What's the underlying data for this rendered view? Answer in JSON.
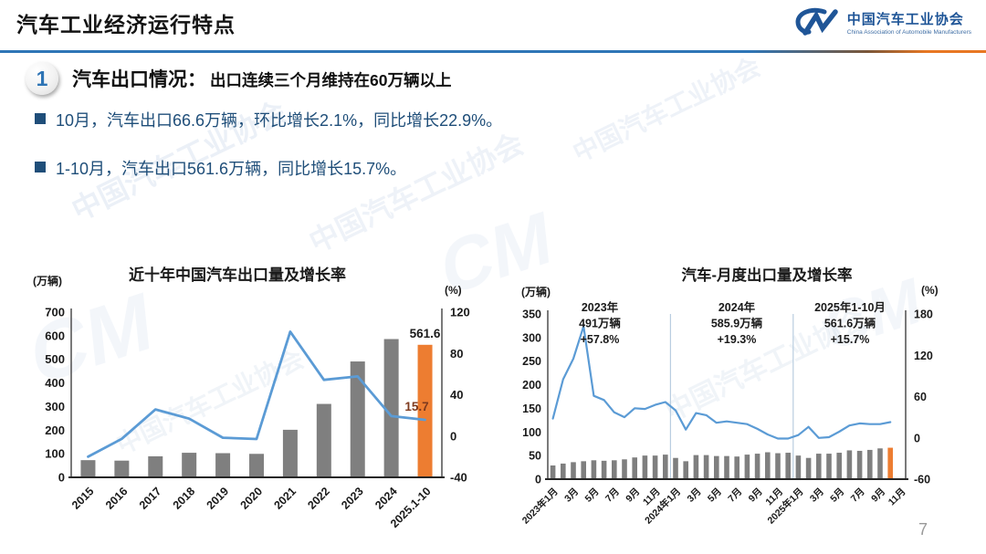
{
  "header": {
    "title": "汽车工业经济运行特点",
    "logo": {
      "mark": "CM",
      "name_cn": "中国汽车工业协会",
      "name_en": "China Association of Automobile Manufacturers"
    }
  },
  "section": {
    "number": "1",
    "heading": "汽车出口情况：",
    "subheading": "出口连续三个月维持在60万辆以上",
    "bullets": [
      "10月，汽车出口66.6万辆，环比增长2.1%，同比增长22.9%。",
      "1-10月，汽车出口561.6万辆，同比增长15.7%。"
    ]
  },
  "watermark": "中国汽车工业协会",
  "page_number": "7",
  "colors": {
    "bar_gray": "#7F7F7F",
    "bar_orange": "#ED7D31",
    "line_blue": "#5B9BD5",
    "text_navy": "#1F4E79",
    "rule_blue": "#2E75B6",
    "rule_orange": "#E87722",
    "logo_blue": "#1F5597",
    "divider_light": "#B9CDE0"
  },
  "chart_data": [
    {
      "type": "bar+line",
      "title": "近十年中国汽车出口量及增长率",
      "legend_position": "none",
      "grid": false,
      "categories": [
        "2015",
        "2016",
        "2017",
        "2018",
        "2019",
        "2020",
        "2021",
        "2022",
        "2023",
        "2024",
        "2025.1-10"
      ],
      "left_axis": {
        "label": "(万辆)",
        "min": 0,
        "max": 700,
        "step": 100
      },
      "right_axis": {
        "label": "(%)",
        "min": -40,
        "max": 120,
        "step": 40
      },
      "bars": {
        "name": "出口量(万辆)",
        "values": [
          72.8,
          70.8,
          89.1,
          104.1,
          102.4,
          99.5,
          201.5,
          311.1,
          491,
          585.9,
          561.6
        ],
        "color": "#7F7F7F",
        "highlight_last_color": "#ED7D31"
      },
      "line": {
        "name": "增长率(%)",
        "axis": "right",
        "values": [
          -20,
          -2.7,
          25.8,
          16.8,
          -1.6,
          -2.9,
          101.1,
          54.4,
          57.8,
          19.3,
          15.7
        ],
        "color": "#5B9BD5"
      },
      "value_labels": [
        {
          "text": "561.6",
          "color": "#1a1a1a"
        },
        {
          "text": "15.7",
          "color": "#7E3A1E"
        }
      ]
    },
    {
      "type": "bar+line",
      "title": "汽车-月度出口量及增长率",
      "legend_position": "none",
      "grid": false,
      "x_tick_labels": [
        "2023年1月",
        "3月",
        "5月",
        "7月",
        "9月",
        "11月",
        "2024年1月",
        "3月",
        "5月",
        "7月",
        "9月",
        "11月",
        "2025年1月",
        "3月",
        "5月",
        "7月",
        "9月",
        "11月"
      ],
      "left_axis": {
        "label": "(万辆)",
        "min": 0,
        "max": 350,
        "step": 50
      },
      "right_axis": {
        "label": "(%)",
        "min": -60,
        "max": 180,
        "step": 60
      },
      "bars": {
        "name": "月度出口量(万辆)",
        "values": [
          29,
          33,
          36,
          38,
          40,
          39,
          40,
          42,
          46,
          50,
          50,
          52,
          45,
          38,
          51,
          51,
          49,
          49,
          48,
          52,
          54,
          57,
          55,
          56,
          50,
          45,
          54,
          54,
          56,
          61,
          60,
          62,
          65.2,
          66.6
        ],
        "color": "#7F7F7F",
        "highlight_last_color": "#ED7D31"
      },
      "line": {
        "name": "同比增长率(%)",
        "axis": "right",
        "values": [
          28,
          85,
          115,
          162,
          61,
          55,
          37,
          30,
          43,
          42,
          48,
          52,
          40,
          12,
          36,
          33,
          22,
          24,
          22,
          20,
          13,
          5,
          -1,
          -1,
          4,
          16,
          0,
          1,
          9,
          18,
          21,
          20,
          20,
          22.9
        ],
        "color": "#5B9BD5"
      },
      "annotations": [
        {
          "lines": [
            "2023年",
            "491万辆",
            "+57.8%"
          ]
        },
        {
          "lines": [
            "2024年",
            "585.9万辆",
            "+19.3%"
          ]
        },
        {
          "lines": [
            "2025年1-10月",
            "561.6万辆",
            "+15.7%"
          ]
        }
      ]
    }
  ]
}
